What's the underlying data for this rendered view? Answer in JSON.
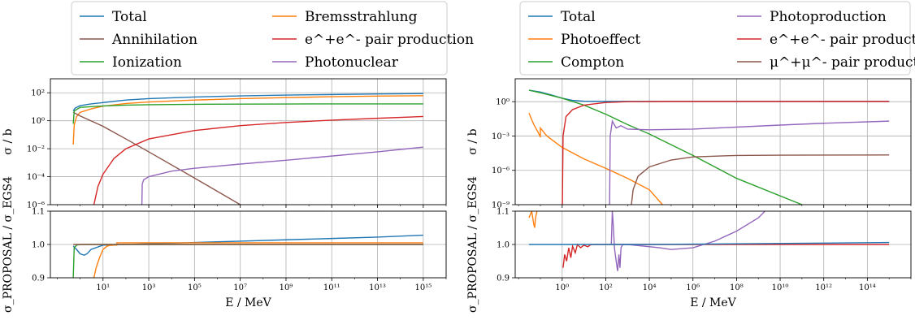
{
  "chart_data": [
    {
      "type": "line",
      "panel": "left-main",
      "title": "",
      "xlabel": "",
      "ylabel": "σ / b",
      "xscale": "log",
      "yscale": "log",
      "xlim": [
        0.05,
        1e+16
      ],
      "ylim": [
        1e-06,
        1000.0
      ],
      "grid": true,
      "legend_position": "top",
      "x_ticks": [
        "10^1",
        "10^3",
        "10^5",
        "10^7",
        "10^9",
        "10^11",
        "10^13",
        "10^15"
      ],
      "y_ticks": [
        "10^-6",
        "10^-4",
        "10^-2",
        "10^0",
        "10^2"
      ],
      "series": [
        {
          "name": "Total",
          "color": "#1f77b4",
          "x": [
            0.5,
            0.6,
            1,
            3,
            10,
            100,
            1000,
            100000.0,
            10000000.0,
            1000000000.0,
            100000000000.0,
            10000000000000.0,
            1000000000000000.0
          ],
          "y": [
            5,
            8,
            12,
            16,
            20,
            30,
            38,
            50,
            60,
            68,
            75,
            82,
            88
          ]
        },
        {
          "name": "Bremsstrahlung",
          "color": "#ff7f0e",
          "x": [
            0.5,
            0.55,
            0.7,
            1,
            3,
            10,
            100,
            1000,
            100000.0,
            10000000.0,
            1000000000.0,
            100000000000.0,
            10000000000000.0,
            1000000000000000.0
          ],
          "y": [
            0.02,
            0.5,
            2,
            4,
            7,
            11,
            17,
            22,
            30,
            38,
            45,
            52,
            58,
            62
          ]
        },
        {
          "name": "Annihilation",
          "color": "#8c564b",
          "x": [
            0.5,
            1,
            10,
            100,
            1000,
            100000.0,
            10000000.0,
            50000000.0
          ],
          "y": [
            4,
            2.2,
            0.4,
            0.05,
            0.006,
            8e-05,
            1e-06,
            3e-07
          ]
        },
        {
          "name": "e^+e^- pair production",
          "color": "#d62728",
          "x": [
            4,
            6,
            10,
            30,
            100,
            1000,
            100000.0,
            10000000.0,
            1000000000.0,
            100000000000.0,
            10000000000000.0,
            1000000000000000.0
          ],
          "y": [
            1e-06,
            2e-05,
            0.00015,
            0.002,
            0.01,
            0.05,
            0.2,
            0.45,
            0.75,
            1.1,
            1.5,
            2.0
          ]
        },
        {
          "name": "Ionization",
          "color": "#2ca02c",
          "x": [
            0.5,
            0.55,
            1,
            10,
            100,
            1000,
            100000.0,
            10000000.0,
            1000000000.0,
            100000000000.0,
            10000000000000.0,
            1000000000000000.0
          ],
          "y": [
            0.6,
            5,
            9,
            11.5,
            13,
            14,
            15,
            15.5,
            15.8,
            16,
            16,
            16
          ]
        },
        {
          "name": "Photonuclear",
          "color": "#9467bd",
          "x": [
            500,
            520,
            600,
            1000,
            10000.0,
            100000.0,
            10000000.0,
            1000000000.0,
            100000000000.0,
            10000000000000.0,
            1000000000000000.0
          ],
          "y": [
            1e-06,
            3e-05,
            6e-05,
            0.0001,
            0.00025,
            0.0004,
            0.0008,
            0.0015,
            0.003,
            0.006,
            0.013
          ]
        }
      ]
    },
    {
      "type": "line",
      "panel": "left-ratio",
      "xlabel": "E / MeV",
      "ylabel": "σ_PROPOSAL / σ_EGS4",
      "xscale": "log",
      "xlim": [
        0.05,
        1e+16
      ],
      "ylim": [
        0.9,
        1.1
      ],
      "grid": true,
      "y_ticks": [
        "0.9",
        "1.0",
        "1.1"
      ],
      "series": [
        {
          "name": "Total",
          "color": "#1f77b4",
          "x": [
            0.5,
            0.7,
            1,
            1.5,
            2,
            3,
            10,
            100,
            1000,
            100000.0,
            10000000.0,
            1000000000.0,
            100000000000.0,
            10000000000000.0,
            1000000000000000.0
          ],
          "y": [
            0.995,
            0.985,
            0.972,
            0.968,
            0.972,
            0.985,
            0.998,
            1.0,
            1.002,
            1.006,
            1.01,
            1.014,
            1.018,
            1.022,
            1.028
          ]
        },
        {
          "name": "Bremsstrahlung",
          "color": "#ff7f0e",
          "x": [
            4,
            5,
            7,
            10,
            15,
            20,
            30,
            40,
            40.5,
            100,
            100000.0,
            1000000000.0,
            1000000000000000.0
          ],
          "y": [
            0.9,
            0.93,
            0.96,
            0.985,
            0.995,
            0.997,
            0.998,
            0.998,
            1.005,
            1.005,
            1.005,
            1.005,
            1.005
          ]
        },
        {
          "name": "Ionization",
          "color": "#2ca02c",
          "x": [
            0.5,
            0.55,
            0.7,
            1,
            10,
            1000000000000000.0
          ],
          "y": [
            0.9,
            0.99,
            0.998,
            1.0,
            1.0,
            1.0
          ]
        },
        {
          "name": "Annihilation",
          "color": "#8c564b",
          "x": [
            0.5,
            1000000000000000.0
          ],
          "y": [
            1.0,
            1.0
          ]
        }
      ]
    },
    {
      "type": "line",
      "panel": "right-main",
      "title": "",
      "xlabel": "",
      "ylabel": "σ / b",
      "xscale": "log",
      "yscale": "log",
      "xlim": [
        0.007,
        1e+16
      ],
      "ylim": [
        1e-09,
        100.0
      ],
      "grid": true,
      "legend_position": "top",
      "x_ticks": [
        "10^0",
        "10^2",
        "10^4",
        "10^6",
        "10^8",
        "10^10",
        "10^12",
        "10^14"
      ],
      "y_ticks": [
        "10^-9",
        "10^-6",
        "10^-3",
        "10^0"
      ],
      "series": [
        {
          "name": "Total",
          "color": "#1f77b4",
          "x": [
            0.03,
            0.1,
            0.3,
            1,
            3,
            10,
            100,
            10000.0,
            1000000.0,
            10000000000.0,
            1000000000000000.0
          ],
          "y": [
            10,
            7,
            4,
            2,
            1.3,
            1.1,
            1.05,
            1.05,
            1.05,
            1.05,
            1.05
          ]
        },
        {
          "name": "Photoeffect",
          "color": "#ff7f0e",
          "x": [
            0.03,
            0.05,
            0.08,
            0.1,
            0.1,
            0.2,
            1,
            10,
            100,
            1000.0,
            10000.0,
            40000.0
          ],
          "y": [
            0.1,
            0.01,
            0.002,
            0.0008,
            0.005,
            0.001,
            0.0001,
            1e-05,
            1.5e-06,
            2e-07,
            2e-08,
            1e-09
          ]
        },
        {
          "name": "Compton",
          "color": "#2ca02c",
          "x": [
            0.03,
            0.1,
            1,
            10,
            100,
            1000.0,
            10000.0,
            1000000.0,
            100000000.0,
            100000000000.0
          ],
          "y": [
            10,
            6,
            2,
            0.5,
            0.08,
            0.01,
            0.0015,
            2e-05,
            2e-07,
            1e-09
          ]
        },
        {
          "name": "Photoproduction",
          "color": "#9467bd",
          "x": [
            150,
            160,
            200,
            300,
            500,
            1000,
            10000.0,
            1000000.0,
            100000000.0,
            10000000000.0,
            1000000000000.0,
            1000000000000000.0
          ],
          "y": [
            1e-09,
            0.001,
            0.02,
            0.005,
            0.008,
            0.004,
            0.0035,
            0.004,
            0.006,
            0.009,
            0.013,
            0.02
          ]
        },
        {
          "name": "e^+e^- pair production",
          "color": "#d62728",
          "x": [
            1.02,
            1.1,
            1.5,
            3,
            10,
            100,
            1000,
            100000.0,
            10000000000.0,
            1000000000000000.0
          ],
          "y": [
            1e-09,
            0.001,
            0.05,
            0.2,
            0.5,
            0.85,
            1.0,
            1.05,
            1.05,
            1.05
          ]
        },
        {
          "name": "μ^+μ^- pair production",
          "color": "#8c564b",
          "x": [
            1500,
            1800,
            3000,
            10000.0,
            100000.0,
            1000000.0,
            100000000.0,
            10000000000.0,
            1000000000000000.0
          ],
          "y": [
            1e-09,
            2e-08,
            3e-07,
            2e-06,
            8e-06,
            1.5e-05,
            2e-05,
            2.1e-05,
            2.2e-05
          ]
        }
      ]
    },
    {
      "type": "line",
      "panel": "right-ratio",
      "xlabel": "E / MeV",
      "ylabel": "σ_PROPOSAL / σ_EGS4",
      "xscale": "log",
      "xlim": [
        0.007,
        1e+16
      ],
      "ylim": [
        0.9,
        1.1
      ],
      "grid": true,
      "y_ticks": [
        "0.9",
        "1.0",
        "1.1"
      ],
      "series": [
        {
          "name": "Photoeffect",
          "color": "#ff7f0e",
          "x": [
            0.03,
            0.04,
            0.05,
            0.055,
            0.06,
            0.07
          ],
          "y": [
            1.08,
            1.1,
            1.06,
            1.05,
            1.08,
            1.1
          ]
        },
        {
          "name": "e^+e^- pair production",
          "color": "#d62728",
          "x": [
            1.1,
            1.3,
            1.6,
            2,
            2.5,
            3,
            4,
            5,
            7,
            10,
            15,
            20,
            30,
            50,
            100,
            1000000000000000.0
          ],
          "y": [
            0.93,
            0.97,
            0.95,
            0.99,
            0.96,
            0.995,
            0.975,
            1.0,
            0.99,
            0.998,
            0.993,
            0.999,
            1.0,
            1.0,
            1.0,
            1.0
          ]
        },
        {
          "name": "Photoproduction",
          "color": "#9467bd",
          "x": [
            180,
            200,
            220,
            250,
            300,
            350,
            400,
            450,
            500,
            600,
            800,
            1000,
            30000.0,
            100000.0,
            1000000.0,
            10000000.0,
            100000000.0,
            1000000000.0,
            2000000000.0
          ],
          "y": [
            1.0,
            1.1,
            1.06,
            0.99,
            0.95,
            0.92,
            0.97,
            0.93,
            0.99,
            1.0,
            1.0,
            1.0,
            0.99,
            0.985,
            0.99,
            1.01,
            1.04,
            1.08,
            1.1
          ]
        },
        {
          "name": "Total",
          "color": "#1f77b4",
          "x": [
            0.03,
            1,
            100,
            10000.0,
            100000000.0,
            1000000000000.0,
            1000000000000000.0
          ],
          "y": [
            1.0,
            1.0,
            1.0,
            1.0,
            1.002,
            1.004,
            1.006
          ]
        }
      ]
    }
  ]
}
